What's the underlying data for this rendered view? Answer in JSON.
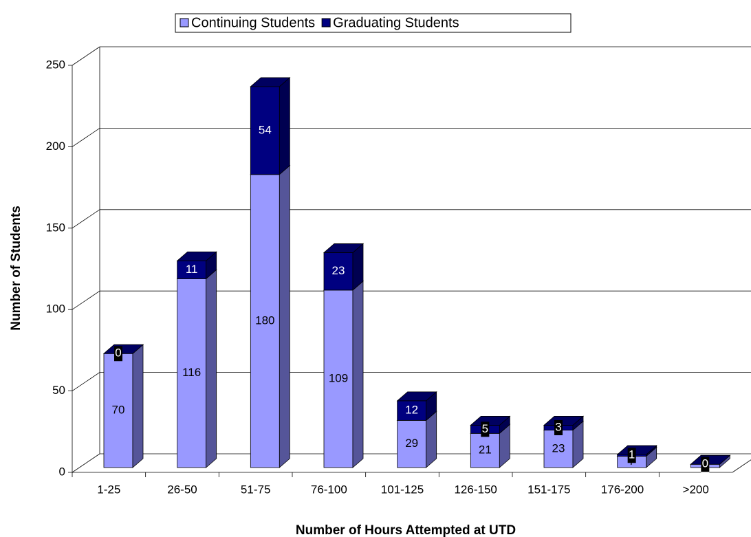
{
  "chart_data": {
    "type": "bar3d_stacked",
    "x_label": "Number of Hours Attempted at UTD",
    "y_label": "Number of Students",
    "categories": [
      "1-25",
      "26-50",
      "51-75",
      "76-100",
      "101-125",
      "126-150",
      "151-175",
      "176-200",
      ">200"
    ],
    "series": [
      {
        "name": "Continuing Students",
        "color": "#9999ff",
        "values": [
          70,
          116,
          180,
          109,
          29,
          21,
          23,
          7,
          2
        ]
      },
      {
        "name": "Graduating Students",
        "color": "#000080",
        "values": [
          0,
          11,
          54,
          23,
          12,
          5,
          3,
          1,
          0
        ]
      }
    ],
    "ylim": [
      0,
      250
    ],
    "yticks": [
      0,
      50,
      100,
      150,
      200,
      250
    ],
    "grid": true,
    "legend": "top"
  }
}
